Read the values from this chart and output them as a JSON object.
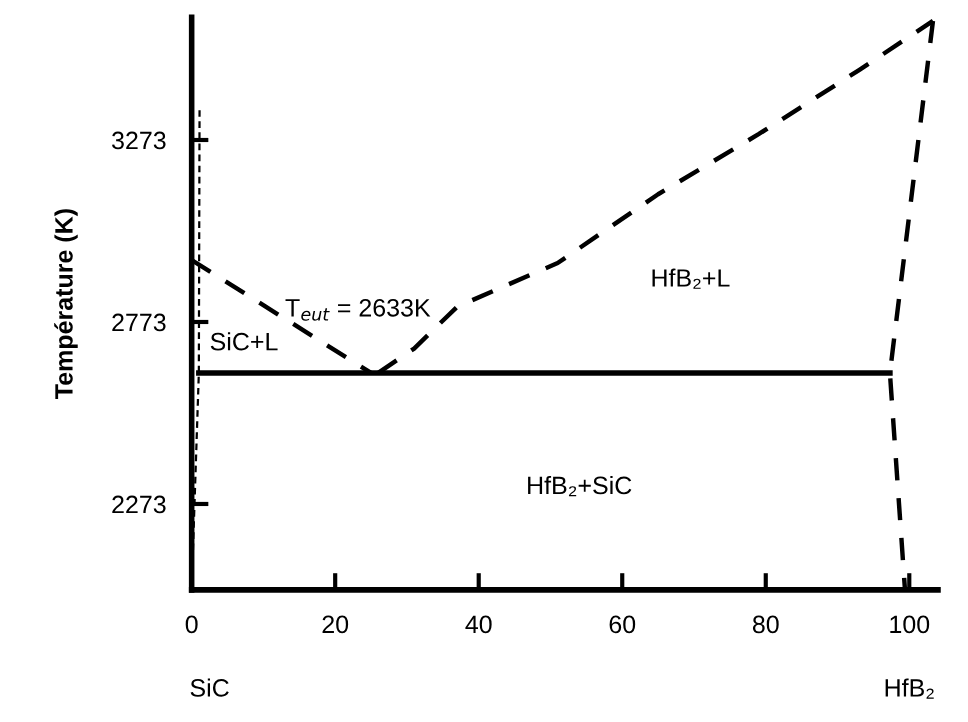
{
  "chart_data": {
    "type": "line",
    "ylabel": "Température (K)",
    "xlim": [
      0,
      104
    ],
    "ylim": [
      2037,
      3610
    ],
    "xticks": [
      0,
      20,
      40,
      60,
      80,
      100
    ],
    "yticks": [
      2273,
      2773,
      3273
    ],
    "grid": false,
    "legend": false,
    "series": [
      {
        "color": "#000000",
        "line_style": "dashed",
        "x": [
          0,
          25
        ],
        "values": [
          2943,
          2633
        ]
      },
      {
        "color": "#000000",
        "line_style": "dashed",
        "x": [
          26,
          31,
          37,
          51,
          65,
          79,
          93,
          103.3
        ],
        "values": [
          2633,
          2700,
          2815,
          2935,
          3124,
          3289,
          3465,
          3600
        ]
      },
      {
        "color": "#000000",
        "line_style": "solid",
        "x": [
          1,
          97.3
        ],
        "values": [
          2633,
          2633
        ]
      },
      {
        "color": "#000000",
        "line_style": "dashed",
        "x": [
          103.3,
          97.3,
          99.4
        ],
        "values": [
          3600,
          2633,
          2037
        ]
      },
      {
        "color": "#000000",
        "line_style": "dotted",
        "x": [
          1.1,
          1,
          0
        ],
        "values": [
          3355,
          2633,
          2037
        ]
      }
    ],
    "annotations": [
      "SiC+L",
      "T$_{eut}$ = 2633K",
      "HfB₂+L",
      "HfB₂+SiC",
      "SiC",
      "HfB₂"
    ]
  }
}
